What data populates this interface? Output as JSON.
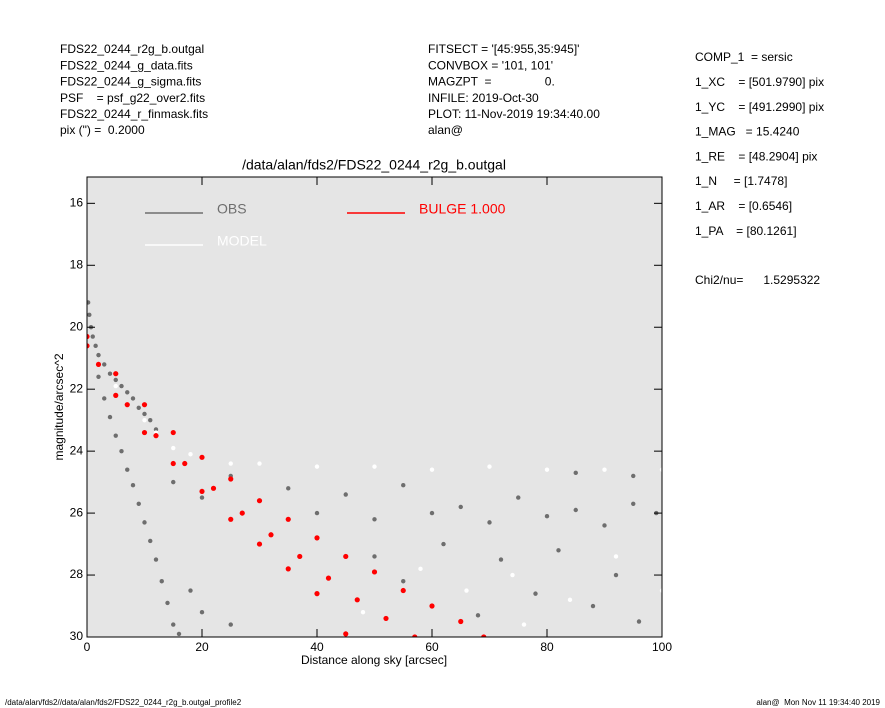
{
  "header": {
    "left": [
      "FDS22_0244_r2g_b.outgal",
      "FDS22_0244_g_data.fits",
      "FDS22_0244_g_sigma.fits",
      "PSF    = psf_g22_over2.fits",
      "FDS22_0244_r_finmask.fits",
      "pix (\") =  0.2000"
    ],
    "center": [
      "FITSECT = '[45:955,35:945]'",
      "CONVBOX = '101, 101'",
      "MAGZPT  =                0.",
      "INFILE: 2019-Oct-30",
      "PLOT: 11-Nov-2019 19:34:40.00",
      "alan@"
    ],
    "right": [
      "COMP_1  = sersic",
      "1_XC    = [501.9790] pix",
      "1_YC    = [491.2990] pix",
      "1_MAG   = 15.4240",
      "1_RE    = [48.2904] pix",
      "1_N     = [1.7478]",
      "1_AR    = [0.6546]",
      "1_PA    = [80.1261]"
    ],
    "chi": "Chi2/nu=      1.5295322"
  },
  "footer": {
    "left": "/data/alan/fds2//data/alan/fds2/FDS22_0244_r2g_b.outgal_profile2",
    "right": "alan@  Mon Nov 11 19:34:40 2019"
  },
  "chart_data": {
    "type": "scatter",
    "title": "/data/alan/fds2/FDS22_0244_r2g_b.outgal",
    "x_label": "Distance along sky [arcsec]",
    "y_label": "magnitude/arcsec^2",
    "xlim": [
      0,
      100
    ],
    "ylim": [
      30,
      15.15
    ],
    "xticks": [
      0,
      20,
      40,
      60,
      80,
      100
    ],
    "yticks": [
      16,
      18,
      20,
      22,
      24,
      26,
      28,
      30
    ],
    "series": [
      {
        "name": "OBS",
        "color": "#6e6e6e",
        "x": [
          0.2,
          0.4,
          0.7,
          1,
          1.5,
          2,
          3,
          4,
          5,
          6,
          7,
          8,
          9,
          10,
          11,
          12,
          2,
          3,
          4,
          5,
          6,
          7,
          8,
          9,
          10,
          11,
          12,
          13,
          14,
          15,
          18,
          20,
          25,
          16,
          15,
          20,
          25,
          30,
          35,
          40,
          45,
          50,
          55,
          60,
          65,
          70,
          75,
          80,
          85,
          90,
          95,
          99,
          62,
          72,
          82,
          92,
          88,
          96,
          78,
          68,
          55,
          85,
          95,
          50
        ],
        "values": [
          19.2,
          19.6,
          20.0,
          20.3,
          20.6,
          20.9,
          21.2,
          21.5,
          21.7,
          21.9,
          22.1,
          22.3,
          22.6,
          22.8,
          23.0,
          23.3,
          21.6,
          22.3,
          22.9,
          23.5,
          24.0,
          24.6,
          25.1,
          25.7,
          26.3,
          26.9,
          27.5,
          28.2,
          28.9,
          29.6,
          28.5,
          29.2,
          29.6,
          29.9,
          25.0,
          25.5,
          24.8,
          25.6,
          25.2,
          26.0,
          25.4,
          26.2,
          25.1,
          26.0,
          25.8,
          26.3,
          25.5,
          26.1,
          25.9,
          26.4,
          25.7,
          26.0,
          27.0,
          27.5,
          27.2,
          28.0,
          29.0,
          29.5,
          28.6,
          29.3,
          28.2,
          24.7,
          24.8,
          27.4
        ]
      },
      {
        "name": "MODEL",
        "color": "#ffffff",
        "x": [
          5,
          10,
          12,
          15,
          18,
          20,
          25,
          30,
          40,
          50,
          60,
          70,
          80,
          90,
          100,
          58,
          66,
          74,
          84,
          92,
          100,
          48,
          76
        ],
        "values": [
          21.9,
          23.0,
          23.4,
          23.9,
          24.1,
          24.2,
          24.4,
          24.4,
          24.5,
          24.5,
          24.6,
          24.5,
          24.6,
          24.6,
          24.6,
          27.8,
          28.5,
          28.0,
          28.8,
          27.4,
          28.5,
          29.2,
          29.6
        ]
      },
      {
        "name": "BULGE 1.000",
        "color": "#ff0000",
        "x": [
          0,
          5,
          10,
          15,
          20,
          25,
          30,
          35,
          40,
          45,
          50,
          55,
          60,
          65,
          69,
          0,
          5,
          10,
          15,
          20,
          25,
          30,
          35,
          40,
          45,
          2,
          7,
          12,
          17,
          22,
          27,
          32,
          37,
          42,
          47,
          52,
          57
        ],
        "values": [
          20.3,
          21.5,
          22.5,
          23.4,
          24.2,
          24.9,
          25.6,
          26.2,
          26.8,
          27.4,
          27.9,
          28.5,
          29.0,
          29.5,
          30.0,
          20.6,
          22.2,
          23.4,
          24.4,
          25.3,
          26.2,
          27.0,
          27.8,
          28.6,
          29.9,
          21.2,
          22.5,
          23.5,
          24.4,
          25.2,
          26.0,
          26.7,
          27.4,
          28.1,
          28.8,
          29.4,
          30.0
        ]
      }
    ]
  }
}
